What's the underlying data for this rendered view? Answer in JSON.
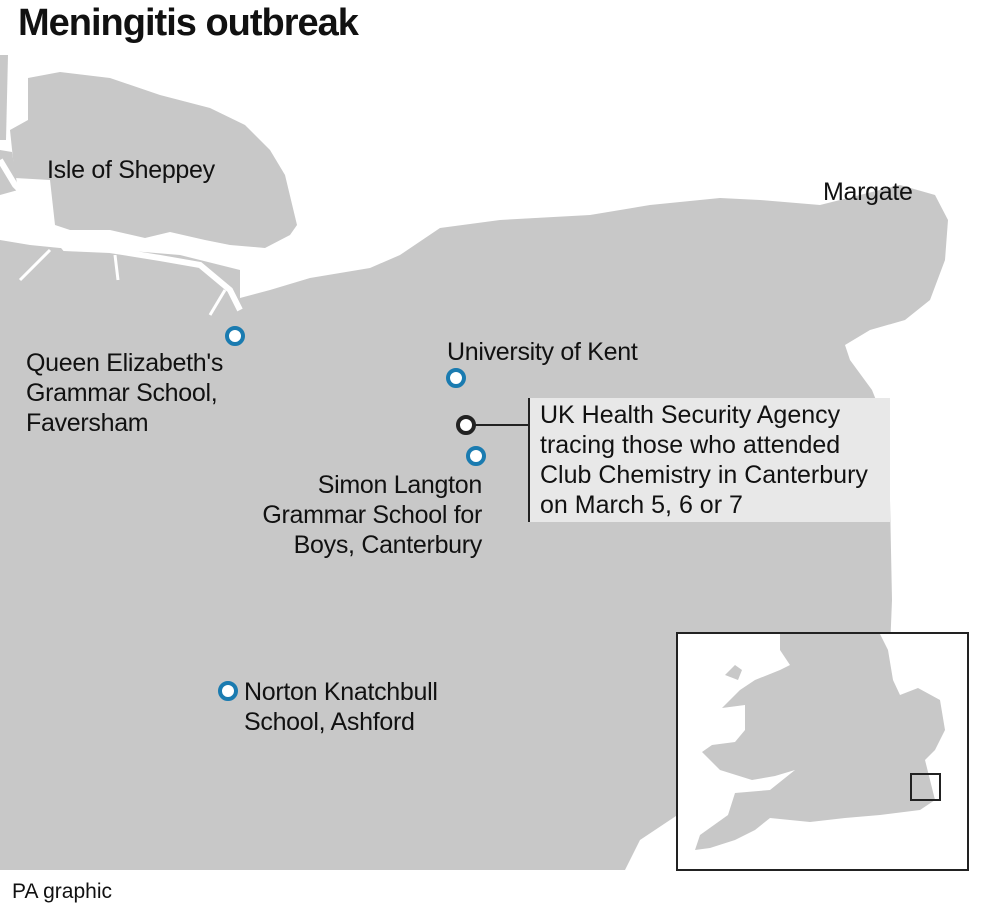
{
  "title": "Meningitis outbreak",
  "source": "PA graphic",
  "colors": {
    "land": "#c8c8c8",
    "sea": "#ffffff",
    "marker": "#1a7bb0",
    "highlight_marker": "#222222",
    "callout_bg": "#e8e8e8"
  },
  "places": {
    "sheppey": "Isle of Sheppey",
    "margate": "Margate",
    "kent_uni": "University of Kent",
    "qegs": [
      "Queen Elizabeth's",
      "Grammar School,",
      "Faversham"
    ],
    "simon": [
      "Simon Langton",
      "Grammar School for",
      "Boys, Canterbury"
    ],
    "norton": [
      "Norton Knatchbull",
      "School, Ashford"
    ]
  },
  "callout": [
    "UK Health Security Agency",
    "tracing those who attended",
    "Club Chemistry in Canterbury",
    "on March 5, 6 or 7"
  ],
  "inset": {
    "icon": "locator-map-england-wales"
  }
}
